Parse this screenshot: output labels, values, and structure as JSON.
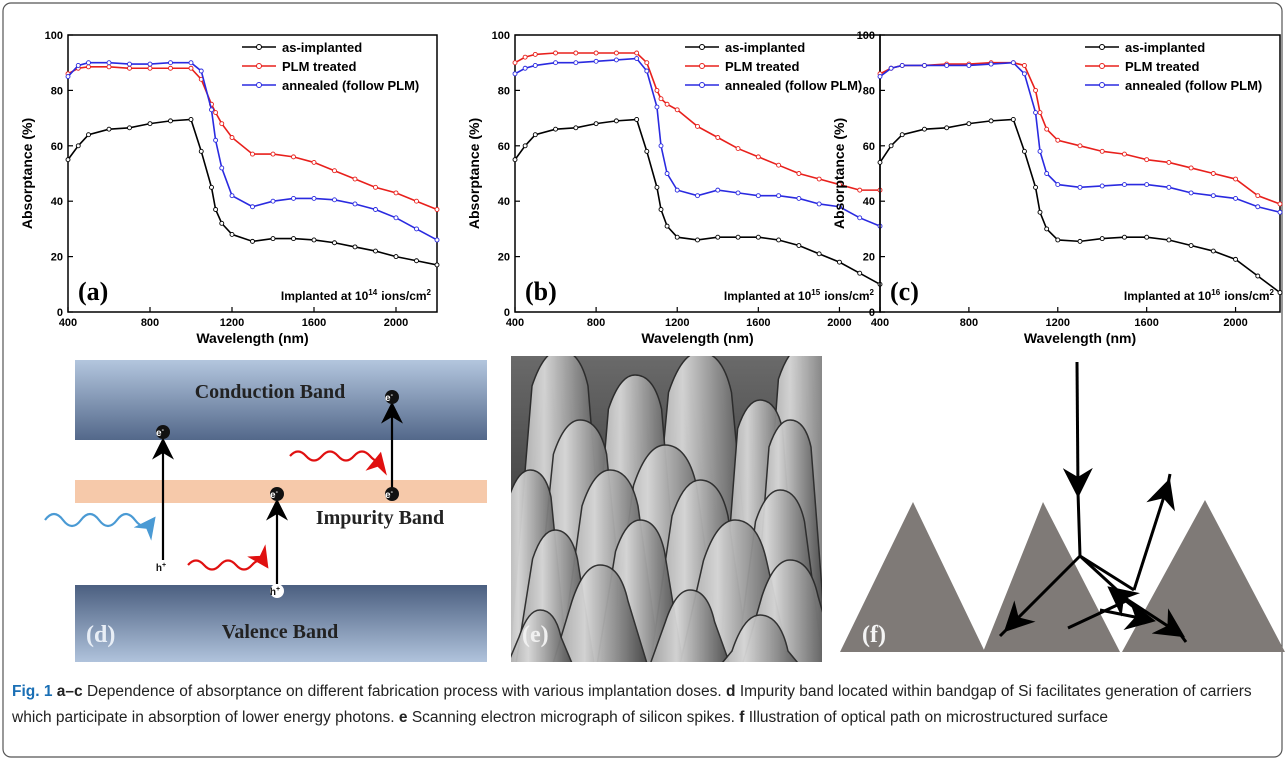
{
  "chart_data": [
    {
      "type": "line",
      "panel_label": "(a)",
      "annotation": {
        "text": "Implanted at 10",
        "exponent": "14",
        "unit": "ions/cm",
        "unit_exponent": "2"
      },
      "x_label": "Wavelength (nm)",
      "y_label": "Absorptance (%)",
      "x": [
        400,
        450,
        500,
        600,
        700,
        800,
        900,
        1000,
        1050,
        1100,
        1120,
        1150,
        1200,
        1300,
        1400,
        1500,
        1600,
        1700,
        1800,
        1900,
        2000,
        2100,
        2200
      ],
      "xlim": [
        400,
        2200
      ],
      "xticks": [
        400,
        800,
        1200,
        1600,
        2000
      ],
      "ylim": [
        0,
        100
      ],
      "yticks": [
        0,
        20,
        40,
        60,
        80,
        100
      ],
      "legend": "upper right",
      "series": [
        {
          "name": "as-implanted",
          "color": "#000000",
          "values": [
            55,
            60,
            64,
            66,
            66.5,
            68,
            69,
            69.5,
            58,
            45,
            37,
            32,
            28,
            25.5,
            26.5,
            26.5,
            26,
            25,
            23.5,
            22,
            20,
            18.5,
            17
          ]
        },
        {
          "name": "PLM treated",
          "color": "#e8201c",
          "values": [
            86,
            88,
            88.5,
            88.5,
            88,
            88,
            88,
            88,
            84,
            75,
            72,
            68,
            63,
            57,
            57,
            56,
            54,
            51,
            48,
            45,
            43,
            40,
            37
          ]
        },
        {
          "name": "annealed (follow PLM)",
          "color": "#2a2ae0",
          "values": [
            85,
            89,
            90,
            90,
            89.5,
            89.5,
            90,
            90,
            87,
            73,
            62,
            52,
            42,
            38,
            40,
            41,
            41,
            40.5,
            39,
            37,
            34,
            30,
            26
          ]
        }
      ]
    },
    {
      "type": "line",
      "panel_label": "(b)",
      "annotation": {
        "text": "Implanted at 10",
        "exponent": "15",
        "unit": "ions/cm",
        "unit_exponent": "2"
      },
      "x_label": "Wavelength (nm)",
      "y_label": "Absorptance (%)",
      "x": [
        400,
        450,
        500,
        600,
        700,
        800,
        900,
        1000,
        1050,
        1100,
        1120,
        1150,
        1200,
        1300,
        1400,
        1500,
        1600,
        1700,
        1800,
        1900,
        2000,
        2100,
        2200
      ],
      "xlim": [
        400,
        2200
      ],
      "xticks": [
        400,
        800,
        1200,
        1600,
        2000
      ],
      "ylim": [
        0,
        100
      ],
      "yticks": [
        0,
        20,
        40,
        60,
        80,
        100
      ],
      "legend": "upper right",
      "series": [
        {
          "name": "as-implanted",
          "color": "#000000",
          "values": [
            55,
            60,
            64,
            66,
            66.5,
            68,
            69,
            69.5,
            58,
            45,
            37,
            31,
            27,
            26,
            27,
            27,
            27,
            26,
            24,
            21,
            18,
            14,
            10
          ]
        },
        {
          "name": "PLM treated",
          "color": "#e8201c",
          "values": [
            90,
            92,
            93,
            93.5,
            93.5,
            93.5,
            93.5,
            93.5,
            90,
            80,
            77,
            75,
            73,
            67,
            63,
            59,
            56,
            53,
            50,
            48,
            46,
            44,
            44
          ]
        },
        {
          "name": "annealed (follow PLM)",
          "color": "#2a2ae0",
          "values": [
            86,
            88,
            89,
            90,
            90,
            90.5,
            91,
            91.5,
            87,
            74,
            60,
            50,
            44,
            42,
            44,
            43,
            42,
            42,
            41,
            39,
            38,
            34,
            31
          ]
        }
      ]
    },
    {
      "type": "line",
      "panel_label": "(c)",
      "annotation": {
        "text": "Implanted at 10",
        "exponent": "16",
        "unit": "ions/cm",
        "unit_exponent": "2"
      },
      "x_label": "Wavelength (nm)",
      "y_label": "Absorptance (%)",
      "x": [
        400,
        450,
        500,
        600,
        700,
        800,
        900,
        1000,
        1050,
        1100,
        1120,
        1150,
        1200,
        1300,
        1400,
        1500,
        1600,
        1700,
        1800,
        1900,
        2000,
        2100,
        2200
      ],
      "xlim": [
        400,
        2200
      ],
      "xticks": [
        400,
        800,
        1200,
        1600,
        2000
      ],
      "ylim": [
        0,
        100
      ],
      "yticks": [
        0,
        20,
        40,
        60,
        80,
        100
      ],
      "legend": "upper right",
      "series": [
        {
          "name": "as-implanted",
          "color": "#000000",
          "values": [
            54,
            60,
            64,
            66,
            66.5,
            68,
            69,
            69.5,
            58,
            45,
            36,
            30,
            26,
            25.5,
            26.5,
            27,
            27,
            26,
            24,
            22,
            19,
            13,
            7
          ]
        },
        {
          "name": "PLM treated",
          "color": "#e8201c",
          "values": [
            86,
            88,
            89,
            89,
            89.5,
            89.5,
            90,
            90,
            89,
            80,
            72,
            66,
            62,
            60,
            58,
            57,
            55,
            54,
            52,
            50,
            48,
            42,
            39
          ]
        },
        {
          "name": "annealed (follow PLM)",
          "color": "#2a2ae0",
          "values": [
            85,
            88,
            89,
            89,
            89,
            89,
            89.5,
            90,
            86,
            72,
            58,
            50,
            46,
            45,
            45.5,
            46,
            46,
            45,
            43,
            42,
            41,
            38,
            36
          ]
        }
      ]
    }
  ],
  "diagram_d": {
    "conduction_band": "Conduction Band",
    "impurity_band": "Impurity Band",
    "valence_band": "Valence Band",
    "panel_label": "(d)",
    "electrons": [
      {
        "base": "e",
        "sup": "-"
      },
      {
        "base": "e",
        "sup": "-"
      },
      {
        "base": "e",
        "sup": "-"
      },
      {
        "base": "e",
        "sup": "-"
      }
    ],
    "holes": [
      {
        "base": "h",
        "sup": "+"
      },
      {
        "base": "h",
        "sup": "+"
      }
    ]
  },
  "panel_e": {
    "panel_label": "(e)"
  },
  "diagram_f": {
    "panel_label": "(f)"
  },
  "caption": [
    {
      "text": "Fig. 1",
      "style": "figure"
    },
    {
      "text": "a–c",
      "style": "bold"
    },
    {
      "text": "Dependence of absorptance on different fabrication process with various implantation doses.",
      "style": "plain"
    },
    {
      "text": "d",
      "style": "bold"
    },
    {
      "text": "Impurity band located within bandgap of Si facilitates generation of carriers which participate in absorption of lower energy photons.",
      "style": "plain"
    },
    {
      "text": "e",
      "style": "bold"
    },
    {
      "text": "Scanning electron micrograph of silicon spikes.",
      "style": "plain"
    },
    {
      "text": "f",
      "style": "bold"
    },
    {
      "text": "Illustration of optical path on microstructured surface",
      "style": "plain"
    }
  ]
}
